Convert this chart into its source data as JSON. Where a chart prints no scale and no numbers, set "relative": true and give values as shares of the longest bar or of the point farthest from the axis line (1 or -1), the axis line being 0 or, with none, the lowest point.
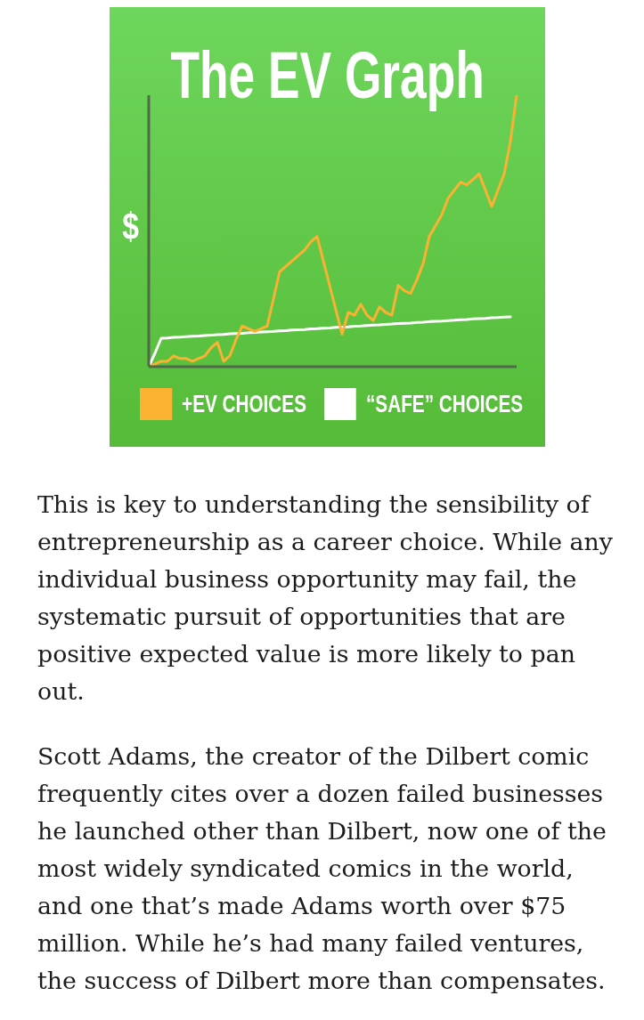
{
  "chart_data": {
    "type": "line",
    "title": "The EV Graph",
    "ylabel": "$",
    "relative": true,
    "legend": "bottom",
    "categories": [
      null,
      null,
      null,
      null,
      null,
      null,
      null,
      null,
      null,
      null,
      null,
      null,
      null,
      null,
      null,
      null,
      null,
      null,
      null,
      null,
      null,
      null,
      null,
      null,
      null,
      null,
      null,
      null,
      null,
      null,
      null,
      null,
      null,
      null,
      null,
      null,
      null,
      null,
      null,
      null,
      null,
      null,
      null,
      null,
      null,
      null,
      null,
      null,
      null,
      null,
      null,
      null,
      null,
      null,
      null,
      null,
      null,
      null,
      null,
      null
    ],
    "series": [
      {
        "name": "+EV CHOICES",
        "color": "#fbb231",
        "values": [
          0,
          0.01,
          0.02,
          0.02,
          0.04,
          0.03,
          0.03,
          0.02,
          0.03,
          0.04,
          0.07,
          0.09,
          0.02,
          0.04,
          0.1,
          0.15,
          0.14,
          0.13,
          0.14,
          0.15,
          0.25,
          0.35,
          0.37,
          0.39,
          0.41,
          0.43,
          0.46,
          0.48,
          0.39,
          0.3,
          0.21,
          0.12,
          0.2,
          0.19,
          0.23,
          0.19,
          0.17,
          0.22,
          0.2,
          0.19,
          0.3,
          0.28,
          0.27,
          0.32,
          0.38,
          0.48,
          0.52,
          0.56,
          0.62,
          0.65,
          0.68,
          0.67,
          0.69,
          0.71,
          0.65,
          0.59,
          0.65,
          0.71,
          0.83,
          1
        ]
      },
      {
        "name": "“SAFE” CHOICES",
        "color": "#ffffff",
        "values": [
          0,
          0.05,
          0.105,
          0.106,
          0.108,
          0.109,
          0.111,
          0.112,
          0.113,
          0.115,
          0.116,
          0.118,
          0.119,
          0.121,
          0.122,
          0.123,
          0.125,
          0.126,
          0.128,
          0.129,
          0.13,
          0.132,
          0.133,
          0.135,
          0.136,
          0.137,
          0.139,
          0.14,
          0.142,
          0.143,
          0.145,
          0.146,
          0.147,
          0.149,
          0.15,
          0.152,
          0.153,
          0.154,
          0.156,
          0.157,
          0.159,
          0.16,
          0.161,
          0.163,
          0.164,
          0.166,
          0.167,
          0.168,
          0.17,
          0.171,
          0.173,
          0.174,
          0.176,
          0.177,
          0.178,
          0.18,
          0.181,
          0.183,
          0.184,
          null
        ]
      }
    ],
    "annotations": [
      "This is key to understanding the sensibility of entrepreneurship as a career choice. While any individual business opportunity may fail, the systematic pursuit of opportunities that are positive expected value is more likely to pan out.",
      "Scott Adams, the creator of the Dilbert comic frequently cites over a dozen failed businesses he launched other than Dilbert, now one of the most widely syndicated comics in the world, and one that’s made Adams worth over $75 million. While he’s had many failed ventures, the success of Dilbert more than compensates."
    ]
  }
}
